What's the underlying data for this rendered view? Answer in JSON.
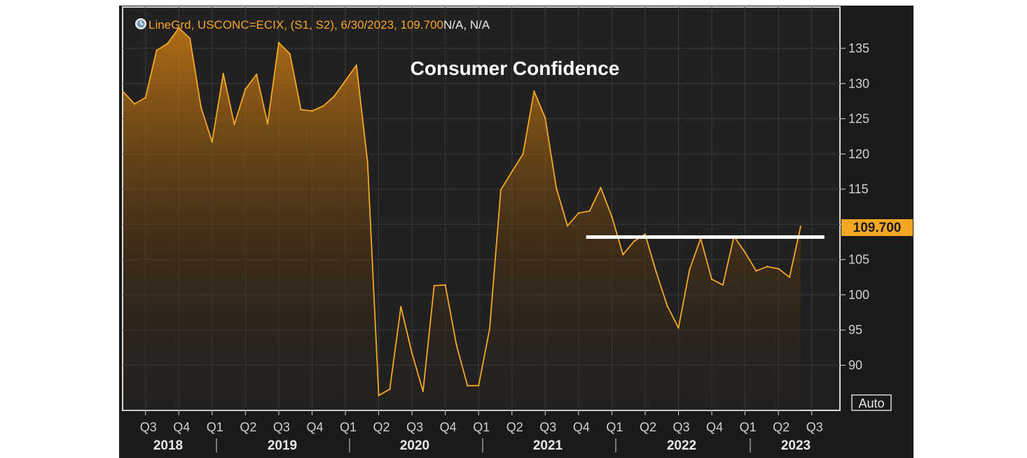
{
  "header_text": "LineGrd, USCONC=ECIX, (S1, S2), 6/30/2023, 109.700",
  "header_suffix": "N/A, N/A",
  "auto_label": "Auto",
  "chart_data": {
    "type": "area",
    "title": "Consumer Confidence",
    "xlabel": "",
    "ylabel": "",
    "ylim": [
      84,
      140
    ],
    "yticks": [
      90,
      95,
      100,
      105,
      110,
      115,
      120,
      125,
      130,
      135
    ],
    "grid": true,
    "last_value_label": "109.700",
    "x": [
      "2018-05",
      "2018-06",
      "2018-07",
      "2018-08",
      "2018-09",
      "2018-10",
      "2018-11",
      "2018-12",
      "2019-01",
      "2019-02",
      "2019-03",
      "2019-04",
      "2019-05",
      "2019-06",
      "2019-07",
      "2019-08",
      "2019-09",
      "2019-10",
      "2019-11",
      "2019-12",
      "2020-01",
      "2020-02",
      "2020-03",
      "2020-04",
      "2020-05",
      "2020-06",
      "2020-07",
      "2020-08",
      "2020-09",
      "2020-10",
      "2020-11",
      "2020-12",
      "2021-01",
      "2021-02",
      "2021-03",
      "2021-04",
      "2021-05",
      "2021-06",
      "2021-07",
      "2021-08",
      "2021-09",
      "2021-10",
      "2021-11",
      "2021-12",
      "2022-01",
      "2022-02",
      "2022-03",
      "2022-04",
      "2022-05",
      "2022-06",
      "2022-07",
      "2022-08",
      "2022-09",
      "2022-10",
      "2022-11",
      "2022-12",
      "2023-01",
      "2023-02",
      "2023-03",
      "2023-04",
      "2023-05",
      "2023-06"
    ],
    "series": [
      {
        "name": "USCONC=ECIX",
        "color": "#f5a623",
        "values": [
          128.8,
          127.1,
          128.0,
          134.7,
          135.7,
          137.9,
          136.4,
          126.6,
          121.7,
          131.4,
          124.2,
          129.2,
          131.3,
          124.3,
          135.8,
          134.2,
          126.3,
          126.1,
          126.8,
          128.2,
          130.4,
          132.6,
          118.8,
          85.7,
          86.6,
          98.3,
          91.7,
          86.3,
          101.3,
          101.4,
          92.9,
          87.1,
          87.1,
          95.2,
          114.9,
          117.5,
          120.0,
          128.9,
          125.1,
          115.2,
          109.8,
          111.6,
          111.9,
          115.2,
          111.1,
          105.7,
          107.6,
          108.6,
          103.2,
          98.4,
          95.3,
          103.6,
          108.0,
          102.2,
          101.4,
          108.3,
          106.0,
          103.4,
          104.0,
          103.7,
          102.5,
          109.7
        ]
      }
    ],
    "x_tick_labels": [
      "Q3",
      "Q4",
      "Q1",
      "Q2",
      "Q3",
      "Q4",
      "Q1",
      "Q2",
      "Q3",
      "Q4",
      "Q1",
      "Q2",
      "Q3",
      "Q4",
      "Q1",
      "Q2",
      "Q3",
      "Q4",
      "Q1",
      "Q2",
      "Q3"
    ],
    "year_labels": [
      "2018",
      "2019",
      "2020",
      "2021",
      "2022",
      "2023"
    ],
    "annotations": [
      {
        "type": "hline",
        "value": 108.2,
        "from": "2021-11",
        "to": "2023-07",
        "color": "#ffffff"
      }
    ]
  }
}
